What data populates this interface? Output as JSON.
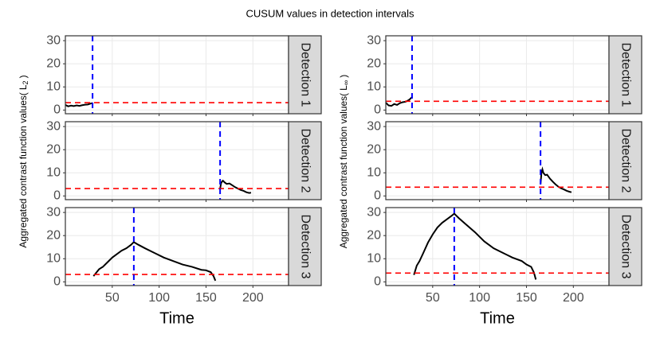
{
  "title": "CUSUM values in detection intervals",
  "x_label": "Time",
  "y_labels": [
    {
      "text": "Aggregated contrast function values(",
      "symbol": "L",
      "subscript": "2",
      "close": ")"
    },
    {
      "text": "Aggregated contrast function values(",
      "symbol": "L",
      "subscript": "∞",
      "close": ")"
    }
  ],
  "chart_data": [
    {
      "type": "line",
      "strip": "Detection 1",
      "x": [
        0,
        3,
        6,
        9,
        12,
        15,
        18,
        21,
        24,
        27,
        29
      ],
      "values": [
        2.2,
        1.6,
        1.9,
        1.7,
        2,
        1.8,
        2.1,
        2.3,
        2.4,
        2.8,
        3
      ],
      "color": "#000000",
      "threshold": 3.2,
      "threshold_color": "#ff0000",
      "changepoint": 29,
      "changepoint_color": "#0000ff",
      "xlim": [
        0,
        238
      ],
      "ylim": [
        -1.6,
        32.1
      ],
      "xticks": [
        50,
        100,
        150,
        200
      ],
      "yticks": [
        0,
        10,
        20,
        30
      ]
    },
    {
      "type": "line",
      "strip": "Detection 2",
      "x": [
        165,
        166,
        167,
        168,
        170,
        172,
        175,
        178,
        181,
        184,
        187,
        190,
        193,
        196,
        198
      ],
      "values": [
        3,
        5.5,
        6.2,
        6.6,
        5.8,
        5.2,
        5.4,
        4.6,
        3.8,
        3.2,
        2.6,
        2.2,
        1.6,
        1.3,
        1.4
      ],
      "color": "#000000",
      "threshold": 3.2,
      "threshold_color": "#ff0000",
      "changepoint": 165,
      "changepoint_color": "#0000ff",
      "xlim": [
        0,
        238
      ],
      "ylim": [
        -1.6,
        32.1
      ],
      "xticks": [
        50,
        100,
        150,
        200
      ],
      "yticks": [
        0,
        10,
        20,
        30
      ]
    },
    {
      "type": "line",
      "strip": "Detection 3",
      "x": [
        30,
        33,
        36,
        40,
        45,
        50,
        55,
        60,
        65,
        70,
        73,
        78,
        85,
        95,
        105,
        115,
        125,
        135,
        145,
        150,
        155,
        158,
        160
      ],
      "values": [
        2.5,
        4,
        5.5,
        6.5,
        8.5,
        10.5,
        12,
        13.5,
        14.5,
        16,
        17.2,
        16,
        14.5,
        12.5,
        10.5,
        9,
        7.5,
        6.5,
        5.2,
        5,
        4.2,
        2.5,
        0.5
      ],
      "color": "#000000",
      "threshold": 3.2,
      "threshold_color": "#ff0000",
      "changepoint": 73,
      "changepoint_color": "#0000ff",
      "xlim": [
        0,
        238
      ],
      "ylim": [
        -1.6,
        32.1
      ],
      "xticks": [
        50,
        100,
        150,
        200
      ],
      "yticks": [
        0,
        10,
        20,
        30
      ]
    },
    {
      "type": "line",
      "strip": "Detection 1",
      "x": [
        0,
        3,
        6,
        9,
        12,
        15,
        18,
        21,
        24,
        26,
        28
      ],
      "values": [
        3.2,
        2,
        1.8,
        2.6,
        2.2,
        3,
        3.4,
        3.6,
        4.2,
        4.8,
        5.6
      ],
      "color": "#000000",
      "threshold": 3.8,
      "threshold_color": "#ff0000",
      "changepoint": 28,
      "changepoint_color": "#0000ff",
      "xlim": [
        0,
        238
      ],
      "ylim": [
        -1.6,
        32.1
      ],
      "xticks": [
        50,
        100,
        150,
        200
      ],
      "yticks": [
        0,
        10,
        20,
        30
      ]
    },
    {
      "type": "line",
      "strip": "Detection 2",
      "x": [
        165,
        166,
        167,
        168,
        170,
        172,
        175,
        178,
        181,
        184,
        187,
        190,
        193,
        196,
        198
      ],
      "values": [
        5,
        10,
        11.5,
        10,
        9,
        9.2,
        7.5,
        6.2,
        5,
        4,
        3.3,
        2.8,
        2.2,
        1.8,
        1.6
      ],
      "color": "#000000",
      "threshold": 3.8,
      "threshold_color": "#ff0000",
      "changepoint": 165,
      "changepoint_color": "#0000ff",
      "xlim": [
        0,
        238
      ],
      "ylim": [
        -1.6,
        32.1
      ],
      "xticks": [
        50,
        100,
        150,
        200
      ],
      "yticks": [
        0,
        10,
        20,
        30
      ]
    },
    {
      "type": "line",
      "strip": "Detection 3",
      "x": [
        30,
        33,
        36,
        40,
        45,
        50,
        55,
        60,
        65,
        70,
        73,
        78,
        85,
        95,
        105,
        115,
        125,
        135,
        145,
        150,
        155,
        158,
        160
      ],
      "values": [
        3,
        7,
        9,
        12.5,
        17,
        20.5,
        23.5,
        25.5,
        27,
        28.5,
        29.5,
        27.5,
        25,
        21.5,
        17.5,
        14.5,
        12.5,
        10.5,
        9,
        7.5,
        6.5,
        4,
        1
      ],
      "color": "#000000",
      "threshold": 3.8,
      "threshold_color": "#ff0000",
      "changepoint": 73,
      "changepoint_color": "#0000ff",
      "xlim": [
        0,
        238
      ],
      "ylim": [
        -1.6,
        32.1
      ],
      "xticks": [
        50,
        100,
        150,
        200
      ],
      "yticks": [
        0,
        10,
        20,
        30
      ]
    }
  ]
}
